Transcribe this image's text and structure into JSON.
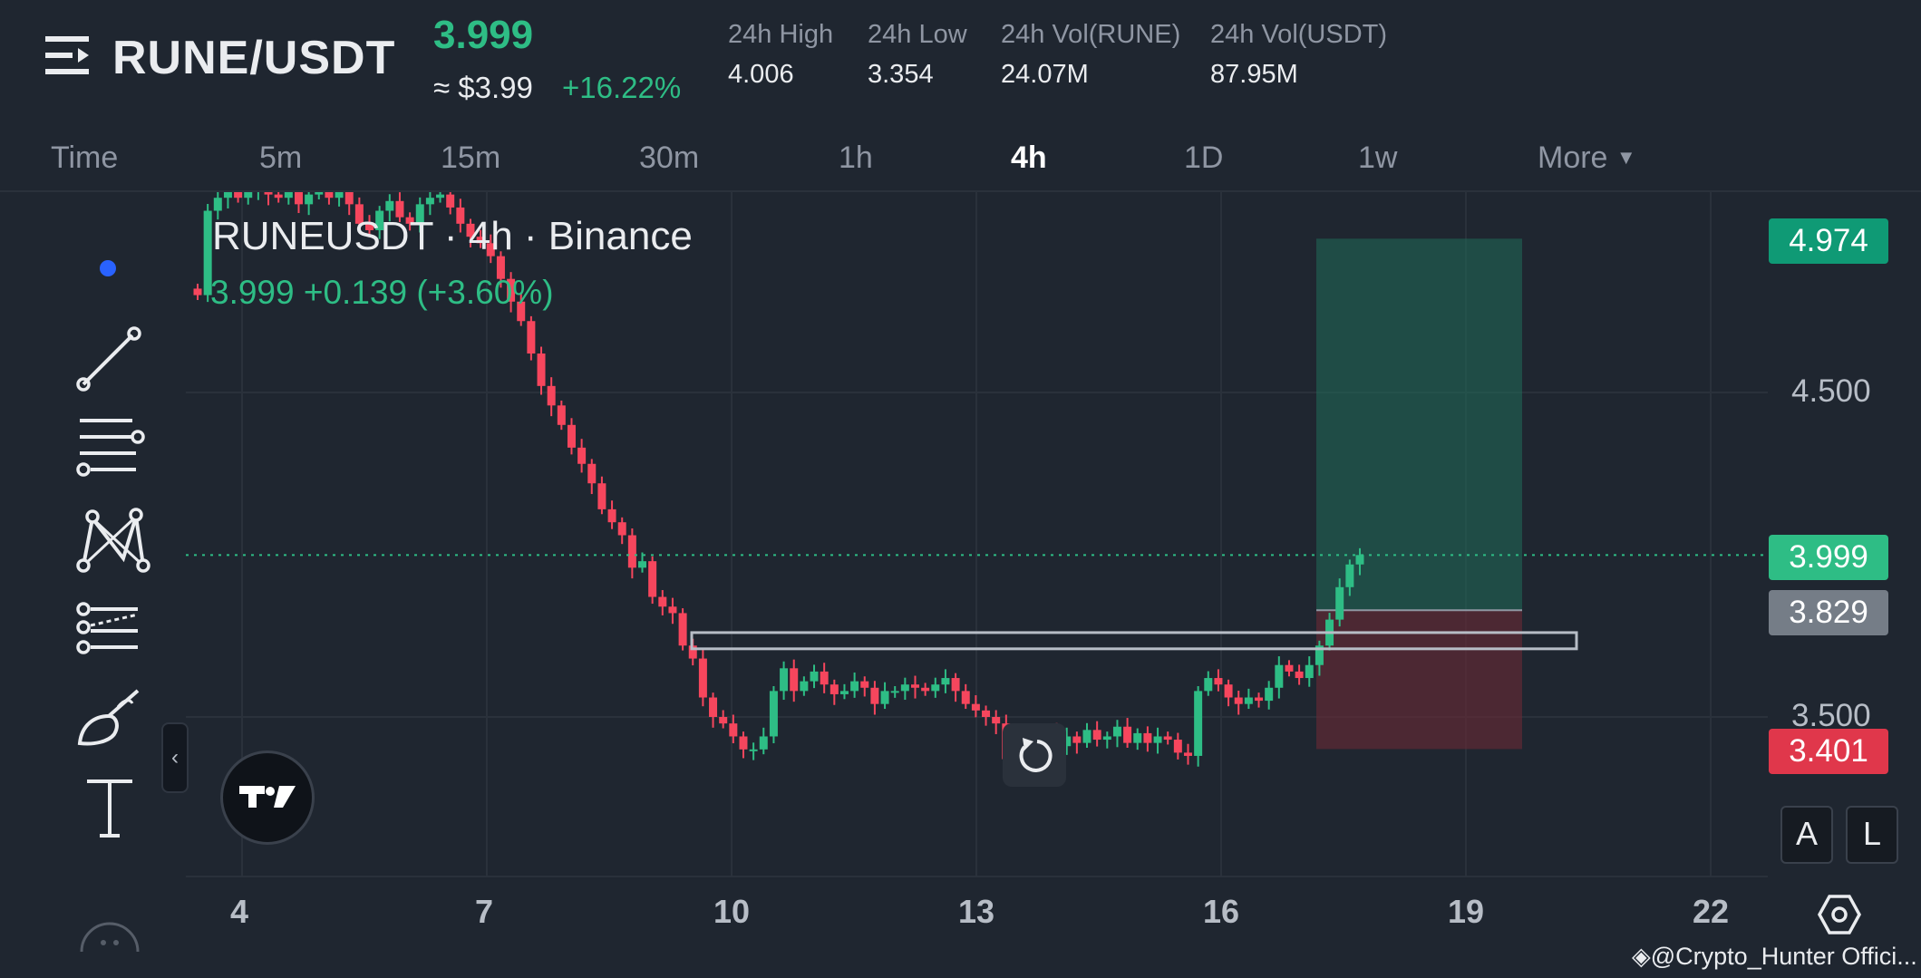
{
  "header": {
    "pair": "RUNE/USDT",
    "last_price": "3.999",
    "usd_price": "≈ $3.99",
    "change_pct": "+16.22%",
    "stats": [
      {
        "label": "24h High",
        "value": "4.006"
      },
      {
        "label": "24h Low",
        "value": "3.354"
      },
      {
        "label": "24h Vol(RUNE)",
        "value": "24.07M"
      },
      {
        "label": "24h Vol(USDT)",
        "value": "87.95M"
      }
    ]
  },
  "tabs": {
    "time": "Time",
    "items": [
      "5m",
      "15m",
      "30m",
      "1h",
      "4h",
      "1D",
      "1w"
    ],
    "active": "4h",
    "more": "More"
  },
  "chart": {
    "symbol_title": "RUNEUSDT · 4h · Binance",
    "ohlc": "3.999  +0.139 (+3.60%)",
    "price_axis": [
      "4.500",
      "3.500"
    ],
    "date_axis": [
      "4",
      "7",
      "10",
      "13",
      "16",
      "19",
      "22"
    ],
    "tags": {
      "target": "4.974",
      "current": "3.999",
      "entry": "3.829",
      "stop": "3.401"
    },
    "colors": {
      "up": "#2ebd85",
      "down": "#f6465d",
      "background": "#1f2630"
    },
    "mode_buttons": [
      "A",
      "L"
    ]
  },
  "chart_data": {
    "type": "candlestick",
    "title": "RUNEUSDT · 4h · Binance",
    "x_ticks": [
      "4",
      "7",
      "10",
      "13",
      "16",
      "19",
      "22"
    ],
    "y_ticks": [
      3.5,
      4.5
    ],
    "ylim": [
      3.33,
      5.2
    ],
    "current_price": 3.999,
    "position": {
      "target": 4.974,
      "entry": 3.829,
      "stop": 3.401
    },
    "resistance_zone": [
      3.71,
      3.76
    ],
    "closes": [
      4.8,
      5.06,
      5.1,
      5.12,
      5.1,
      5.12,
      5.13,
      5.11,
      5.1,
      5.12,
      5.08,
      5.11,
      5.12,
      5.1,
      5.13,
      5.08,
      5.02,
      5.0,
      5.06,
      5.09,
      5.04,
      5.02,
      5.08,
      5.1,
      5.11,
      5.07,
      5.02,
      4.98,
      4.96,
      4.92,
      4.85,
      4.78,
      4.72,
      4.62,
      4.52,
      4.46,
      4.4,
      4.33,
      4.28,
      4.22,
      4.14,
      4.1,
      4.06,
      3.96,
      3.98,
      3.87,
      3.84,
      3.82,
      3.72,
      3.68,
      3.56,
      3.5,
      3.48,
      3.44,
      3.4,
      3.4,
      3.44,
      3.58,
      3.65,
      3.58,
      3.61,
      3.64,
      3.6,
      3.57,
      3.58,
      3.61,
      3.59,
      3.54,
      3.58,
      3.58,
      3.6,
      3.59,
      3.58,
      3.6,
      3.62,
      3.58,
      3.54,
      3.52,
      3.5,
      3.48,
      3.37,
      3.34,
      3.42,
      3.38,
      3.46,
      3.41,
      3.44,
      3.42,
      3.46,
      3.43,
      3.44,
      3.47,
      3.42,
      3.45,
      3.42,
      3.44,
      3.43,
      3.39,
      3.38,
      3.58,
      3.62,
      3.6,
      3.56,
      3.54,
      3.56,
      3.55,
      3.59,
      3.66,
      3.64,
      3.62,
      3.66,
      3.72,
      3.8,
      3.9,
      3.97,
      3.999
    ]
  }
}
